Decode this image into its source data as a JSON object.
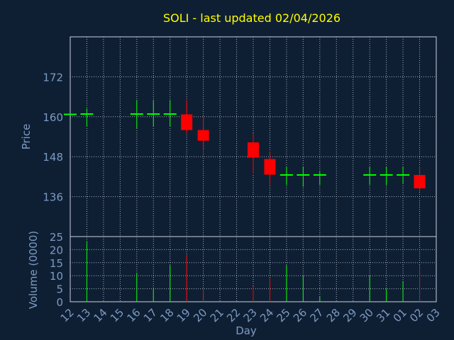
{
  "chart_data": [
    {
      "type": "candlestick",
      "title": "SOLI - last updated 02/04/2026",
      "ylabel": "Price",
      "ylim": [
        124,
        184
      ],
      "yticks": [
        136,
        148,
        160,
        172
      ],
      "x_tick_labels": [
        "12",
        "13",
        "14",
        "15",
        "16",
        "17",
        "18",
        "19",
        "20",
        "21",
        "22",
        "23",
        "24",
        "25",
        "26",
        "27",
        "28",
        "29",
        "30",
        "31",
        "01",
        "02",
        "03"
      ],
      "candles": [
        {
          "day": "12",
          "open": 160.7,
          "high": 160.7,
          "low": 160.7,
          "close": 160.7
        },
        {
          "day": "13",
          "open": 160.8,
          "high": 162.5,
          "low": 157.0,
          "close": 160.8
        },
        {
          "day": "16",
          "open": 160.8,
          "high": 165.0,
          "low": 156.5,
          "close": 160.8
        },
        {
          "day": "17",
          "open": 160.8,
          "high": 165.0,
          "low": 157.0,
          "close": 160.8
        },
        {
          "day": "18",
          "open": 160.8,
          "high": 165.0,
          "low": 157.0,
          "close": 160.8
        },
        {
          "day": "19",
          "open": 160.7,
          "high": 165.0,
          "low": 155.0,
          "close": 156.0
        },
        {
          "day": "20",
          "open": 156.0,
          "high": 160.0,
          "low": 150.0,
          "close": 152.8
        },
        {
          "day": "23",
          "open": 152.3,
          "high": 155.0,
          "low": 143.0,
          "close": 147.7
        },
        {
          "day": "24",
          "open": 147.3,
          "high": 149.5,
          "low": 139.5,
          "close": 142.6
        },
        {
          "day": "25",
          "open": 142.5,
          "high": 145.0,
          "low": 139.5,
          "close": 142.5
        },
        {
          "day": "26",
          "open": 142.5,
          "high": 145.0,
          "low": 139.0,
          "close": 142.5
        },
        {
          "day": "27",
          "open": 142.5,
          "high": 143.5,
          "low": 139.5,
          "close": 142.5
        },
        {
          "day": "30",
          "open": 142.5,
          "high": 145.0,
          "low": 139.5,
          "close": 142.5
        },
        {
          "day": "31",
          "open": 142.5,
          "high": 145.0,
          "low": 139.5,
          "close": 142.5
        },
        {
          "day": "01",
          "open": 142.5,
          "high": 145.0,
          "low": 140.0,
          "close": 142.5
        },
        {
          "day": "02",
          "open": 142.5,
          "high": 145.0,
          "low": 137.5,
          "close": 138.5
        }
      ],
      "colors": {
        "up": "#00ff00",
        "down": "#ff0000"
      }
    },
    {
      "type": "bar",
      "ylabel": "Volume (0000)",
      "xlabel": "Day",
      "ylim": [
        0,
        25
      ],
      "yticks": [
        0,
        5,
        10,
        15,
        20,
        25
      ],
      "x_tick_labels": [
        "12",
        "13",
        "14",
        "15",
        "16",
        "17",
        "18",
        "19",
        "20",
        "21",
        "22",
        "23",
        "24",
        "25",
        "26",
        "27",
        "28",
        "29",
        "30",
        "31",
        "01",
        "02",
        "03"
      ],
      "volumes": [
        {
          "day": "12",
          "value": 0,
          "dir": "up"
        },
        {
          "day": "13",
          "value": 23,
          "dir": "up"
        },
        {
          "day": "16",
          "value": 11,
          "dir": "up"
        },
        {
          "day": "17",
          "value": 5,
          "dir": "up"
        },
        {
          "day": "18",
          "value": 14,
          "dir": "up"
        },
        {
          "day": "19",
          "value": 18,
          "dir": "down"
        },
        {
          "day": "20",
          "value": 4,
          "dir": "down"
        },
        {
          "day": "23",
          "value": 6,
          "dir": "down"
        },
        {
          "day": "24",
          "value": 9,
          "dir": "down"
        },
        {
          "day": "25",
          "value": 14,
          "dir": "up"
        },
        {
          "day": "26",
          "value": 10,
          "dir": "up"
        },
        {
          "day": "27",
          "value": 2,
          "dir": "up"
        },
        {
          "day": "30",
          "value": 10,
          "dir": "up"
        },
        {
          "day": "31",
          "value": 5,
          "dir": "up"
        },
        {
          "day": "01",
          "value": 8,
          "dir": "up"
        },
        {
          "day": "02",
          "value": 14,
          "dir": "down"
        }
      ]
    }
  ],
  "colors": {
    "background": "#0f1f33",
    "title": "#ffff00",
    "axis_text": "#7b9bc4",
    "grid": "#c8d0dc",
    "frame": "#c8d0dc"
  }
}
